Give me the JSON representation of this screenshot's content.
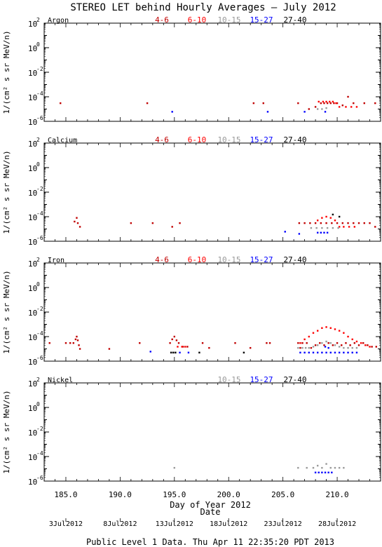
{
  "title": "STEREO LET behind Hourly Averages – July 2012",
  "footer": "Public Level 1 Data. Thu Apr 11 22:35:20 PDT 2013",
  "xlabel": "Day of Year 2012",
  "date_axis_label": "Date",
  "ylabel": "1/(cm² s sr MeV/n)",
  "xlim": [
    183,
    214
  ],
  "ylim_exponent": [
    -6,
    2
  ],
  "y_scale": "log",
  "x_ticks": [
    "185.0",
    "190.0",
    "195.0",
    "200.0",
    "205.0",
    "210.0"
  ],
  "date_ticks": [
    {
      "doy": 185,
      "label": "3Jul2012"
    },
    {
      "doy": 190,
      "label": "8Jul2012"
    },
    {
      "doy": 195,
      "label": "13Jul2012"
    },
    {
      "doy": 200,
      "label": "18Jul2012"
    },
    {
      "doy": 205,
      "label": "23Jul2012"
    },
    {
      "doy": 210,
      "label": "28Jul2012"
    }
  ],
  "y_tick_labels": [
    "10",
    "10",
    "10",
    "10",
    "10"
  ],
  "y_tick_exponents": [
    "2",
    "0",
    "-2",
    "-4",
    "-6"
  ],
  "colors": {
    "4-6": "#c00000",
    "6-10": "#ff0000",
    "10-15": "#999999",
    "15-27": "#0000ff",
    "27-40": "#000000"
  },
  "chart_data": [
    {
      "type": "scatter",
      "element": "Argon",
      "legend": [
        "4-6",
        "6-10",
        "10-15",
        "15-27",
        "27-40"
      ],
      "series": [
        {
          "name": "4-6",
          "color": "#c00000",
          "points": [
            [
              184.5,
              3e-05
            ],
            [
              192.5,
              3e-05
            ],
            [
              202.3,
              3e-05
            ],
            [
              203.2,
              3e-05
            ],
            [
              206.4,
              3e-05
            ],
            [
              207.4,
              1e-05
            ],
            [
              208.0,
              1.5e-05
            ],
            [
              208.5,
              3e-05
            ],
            [
              208.8,
              3e-05
            ],
            [
              209.1,
              3e-05
            ],
            [
              209.4,
              3e-05
            ],
            [
              209.7,
              3e-05
            ],
            [
              210.0,
              3e-05
            ],
            [
              210.5,
              2e-05
            ],
            [
              211.0,
              0.0001
            ],
            [
              211.5,
              3e-05
            ],
            [
              212.5,
              3e-05
            ],
            [
              213.5,
              3e-05
            ]
          ]
        },
        {
          "name": "6-10",
          "color": "#ff0000",
          "points": [
            [
              208.3,
              4e-05
            ],
            [
              208.7,
              4e-05
            ],
            [
              209.0,
              4e-05
            ],
            [
              209.3,
              4e-05
            ],
            [
              209.6,
              4e-05
            ],
            [
              209.9,
              3e-05
            ],
            [
              210.2,
              1.5e-05
            ],
            [
              210.8,
              1.5e-05
            ],
            [
              211.3,
              1.5e-05
            ],
            [
              211.8,
              1.5e-05
            ]
          ]
        },
        {
          "name": "10-15",
          "color": "#999999",
          "points": [
            [
              208.2,
              1e-05
            ],
            [
              208.6,
              1e-05
            ],
            [
              209.0,
              1.2e-05
            ]
          ]
        },
        {
          "name": "15-27",
          "color": "#0000ff",
          "points": [
            [
              194.8,
              6e-06
            ],
            [
              203.6,
              6e-06
            ],
            [
              207.0,
              6e-06
            ],
            [
              208.9,
              6e-06
            ]
          ]
        },
        {
          "name": "27-40",
          "color": "#000000",
          "points": []
        }
      ]
    },
    {
      "type": "scatter",
      "element": "Calcium",
      "legend": [
        "4-6",
        "6-10",
        "10-15",
        "15-27",
        "27-40"
      ],
      "series": [
        {
          "name": "4-6",
          "color": "#c00000",
          "points": [
            [
              185.8,
              4e-05
            ],
            [
              186.0,
              8e-05
            ],
            [
              186.1,
              3e-05
            ],
            [
              186.3,
              1.5e-05
            ],
            [
              191.0,
              3e-05
            ],
            [
              193.0,
              3e-05
            ],
            [
              194.8,
              1.5e-05
            ],
            [
              195.5,
              3e-05
            ],
            [
              206.5,
              3e-05
            ],
            [
              207.0,
              3e-05
            ],
            [
              207.5,
              3e-05
            ],
            [
              208.0,
              3e-05
            ],
            [
              208.5,
              3e-05
            ],
            [
              209.0,
              3e-05
            ],
            [
              209.5,
              3e-05
            ],
            [
              210.0,
              3e-05
            ],
            [
              210.5,
              3e-05
            ],
            [
              211.0,
              3e-05
            ],
            [
              211.5,
              3e-05
            ],
            [
              212.0,
              3e-05
            ],
            [
              212.5,
              3e-05
            ],
            [
              213.0,
              3e-05
            ],
            [
              213.5,
              1.5e-05
            ]
          ]
        },
        {
          "name": "6-10",
          "color": "#ff0000",
          "points": [
            [
              208.2,
              5e-05
            ],
            [
              208.6,
              8e-05
            ],
            [
              209.0,
              0.0001
            ],
            [
              209.4,
              8e-05
            ],
            [
              209.8,
              5e-05
            ],
            [
              210.2,
              1.5e-05
            ],
            [
              210.6,
              1.5e-05
            ],
            [
              211.1,
              1.5e-05
            ],
            [
              211.6,
              1.5e-05
            ]
          ]
        },
        {
          "name": "10-15",
          "color": "#999999",
          "points": [
            [
              207.6,
              1.2e-05
            ],
            [
              208.1,
              1.2e-05
            ],
            [
              208.6,
              1.2e-05
            ],
            [
              209.1,
              1.2e-05
            ],
            [
              209.6,
              1.2e-05
            ],
            [
              210.1,
              1.2e-05
            ]
          ]
        },
        {
          "name": "15-27",
          "color": "#0000ff",
          "points": [
            [
              205.2,
              6e-06
            ],
            [
              206.5,
              4e-06
            ],
            [
              208.2,
              5e-06
            ],
            [
              208.5,
              5e-06
            ],
            [
              208.8,
              5e-06
            ],
            [
              209.1,
              5e-06
            ]
          ]
        },
        {
          "name": "27-40",
          "color": "#000000",
          "points": [
            [
              209.6,
              0.00015
            ],
            [
              210.2,
              0.0001
            ]
          ]
        }
      ]
    },
    {
      "type": "scatter",
      "element": "Iron",
      "legend": [
        "4-6",
        "6-10",
        "10-15",
        "15-27",
        "27-40"
      ],
      "series": [
        {
          "name": "4-6",
          "color": "#c00000",
          "points": [
            [
              183.5,
              3e-05
            ],
            [
              185.0,
              3e-05
            ],
            [
              185.4,
              3e-05
            ],
            [
              185.7,
              3e-05
            ],
            [
              185.9,
              6e-05
            ],
            [
              186.0,
              0.0001
            ],
            [
              186.1,
              5e-05
            ],
            [
              186.2,
              2e-05
            ],
            [
              186.3,
              1e-05
            ],
            [
              189.0,
              1e-05
            ],
            [
              191.8,
              3e-05
            ],
            [
              194.6,
              3e-05
            ],
            [
              194.8,
              6e-05
            ],
            [
              195.0,
              0.0001
            ],
            [
              195.2,
              5e-05
            ],
            [
              195.4,
              3e-05
            ],
            [
              195.8,
              1.5e-05
            ],
            [
              196.2,
              1.5e-05
            ],
            [
              197.6,
              3e-05
            ],
            [
              198.2,
              1.2e-05
            ],
            [
              200.6,
              3e-05
            ],
            [
              202.0,
              1.2e-05
            ],
            [
              203.5,
              3e-05
            ],
            [
              203.8,
              3e-05
            ],
            [
              206.4,
              3e-05
            ],
            [
              206.6,
              1.2e-05
            ],
            [
              206.8,
              3e-05
            ],
            [
              207.2,
              3e-05
            ],
            [
              207.6,
              1.2e-05
            ],
            [
              208.0,
              2e-05
            ],
            [
              208.4,
              3e-05
            ],
            [
              208.8,
              2e-05
            ],
            [
              209.2,
              3e-05
            ],
            [
              209.6,
              2e-05
            ],
            [
              210.0,
              3e-05
            ],
            [
              210.4,
              2e-05
            ],
            [
              210.8,
              3e-05
            ],
            [
              211.2,
              2e-05
            ],
            [
              211.6,
              3e-05
            ],
            [
              212.0,
              2e-05
            ],
            [
              212.4,
              3e-05
            ],
            [
              212.8,
              2e-05
            ],
            [
              213.2,
              1.5e-05
            ],
            [
              213.6,
              1.5e-05
            ]
          ]
        },
        {
          "name": "6-10",
          "color": "#ff0000",
          "points": [
            [
              206.6,
              3e-05
            ],
            [
              207.0,
              6e-05
            ],
            [
              207.4,
              0.0001
            ],
            [
              207.8,
              0.0002
            ],
            [
              208.2,
              0.0003
            ],
            [
              208.6,
              0.0005
            ],
            [
              209.0,
              0.0006
            ],
            [
              209.4,
              0.0005
            ],
            [
              209.8,
              0.0004
            ],
            [
              210.2,
              0.0003
            ],
            [
              210.6,
              0.0002
            ],
            [
              211.0,
              0.0001
            ],
            [
              211.4,
              6e-05
            ],
            [
              211.8,
              4e-05
            ],
            [
              212.2,
              3e-05
            ],
            [
              212.6,
              2e-05
            ],
            [
              213.0,
              1.5e-05
            ],
            [
              195.3,
              1.5e-05
            ],
            [
              195.7,
              1.5e-05
            ],
            [
              196.0,
              1.5e-05
            ]
          ]
        },
        {
          "name": "10-15",
          "color": "#999999",
          "points": [
            [
              207.4,
              1.2e-05
            ],
            [
              207.8,
              1.5e-05
            ],
            [
              208.2,
              2e-05
            ],
            [
              208.6,
              3e-05
            ],
            [
              209.0,
              4e-05
            ],
            [
              209.4,
              3e-05
            ],
            [
              209.8,
              2e-05
            ],
            [
              210.2,
              1.5e-05
            ],
            [
              210.6,
              1.2e-05
            ],
            [
              211.0,
              1.2e-05
            ],
            [
              211.4,
              1.2e-05
            ],
            [
              211.8,
              1.2e-05
            ],
            [
              206.4,
              1.2e-05
            ],
            [
              206.8,
              1.2e-05
            ],
            [
              207.1,
              1.2e-05
            ]
          ]
        },
        {
          "name": "15-27",
          "color": "#0000ff",
          "points": [
            [
              192.8,
              6e-06
            ],
            [
              195.5,
              5e-06
            ],
            [
              196.3,
              5e-06
            ],
            [
              206.6,
              5e-06
            ],
            [
              207.0,
              5e-06
            ],
            [
              207.4,
              5e-06
            ],
            [
              207.8,
              5e-06
            ],
            [
              208.2,
              5e-06
            ],
            [
              208.6,
              5e-06
            ],
            [
              209.0,
              5e-06
            ],
            [
              209.4,
              5e-06
            ],
            [
              209.8,
              5e-06
            ],
            [
              210.2,
              5e-06
            ],
            [
              210.6,
              5e-06
            ],
            [
              211.0,
              5e-06
            ],
            [
              211.4,
              5e-06
            ],
            [
              211.8,
              5e-06
            ],
            [
              208.9,
              1.5e-05
            ],
            [
              209.2,
              1.2e-05
            ]
          ]
        },
        {
          "name": "27-40",
          "color": "#000000",
          "points": [
            [
              194.7,
              5e-06
            ],
            [
              194.9,
              5e-06
            ],
            [
              195.1,
              5e-06
            ],
            [
              197.3,
              5e-06
            ],
            [
              201.4,
              5e-06
            ]
          ]
        }
      ]
    },
    {
      "type": "scatter",
      "element": "Nickel",
      "legend": [
        "10-15",
        "15-27",
        "27-40"
      ],
      "series": [
        {
          "name": "10-15",
          "color": "#999999",
          "points": [
            [
              195.0,
              1.2e-05
            ],
            [
              206.4,
              1.2e-05
            ],
            [
              207.2,
              1.2e-05
            ],
            [
              207.8,
              1.2e-05
            ],
            [
              208.2,
              1.8e-05
            ],
            [
              208.6,
              1.2e-05
            ],
            [
              209.0,
              2.5e-05
            ],
            [
              209.4,
              1.2e-05
            ],
            [
              209.8,
              1.2e-05
            ],
            [
              210.2,
              1.2e-05
            ],
            [
              210.6,
              1.2e-05
            ]
          ]
        },
        {
          "name": "15-27",
          "color": "#0000ff",
          "points": [
            [
              208.0,
              5e-06
            ],
            [
              208.3,
              5e-06
            ],
            [
              208.6,
              5e-06
            ],
            [
              208.9,
              5e-06
            ],
            [
              209.2,
              5e-06
            ],
            [
              209.5,
              5e-06
            ]
          ]
        },
        {
          "name": "27-40",
          "color": "#000000",
          "points": []
        }
      ]
    }
  ]
}
